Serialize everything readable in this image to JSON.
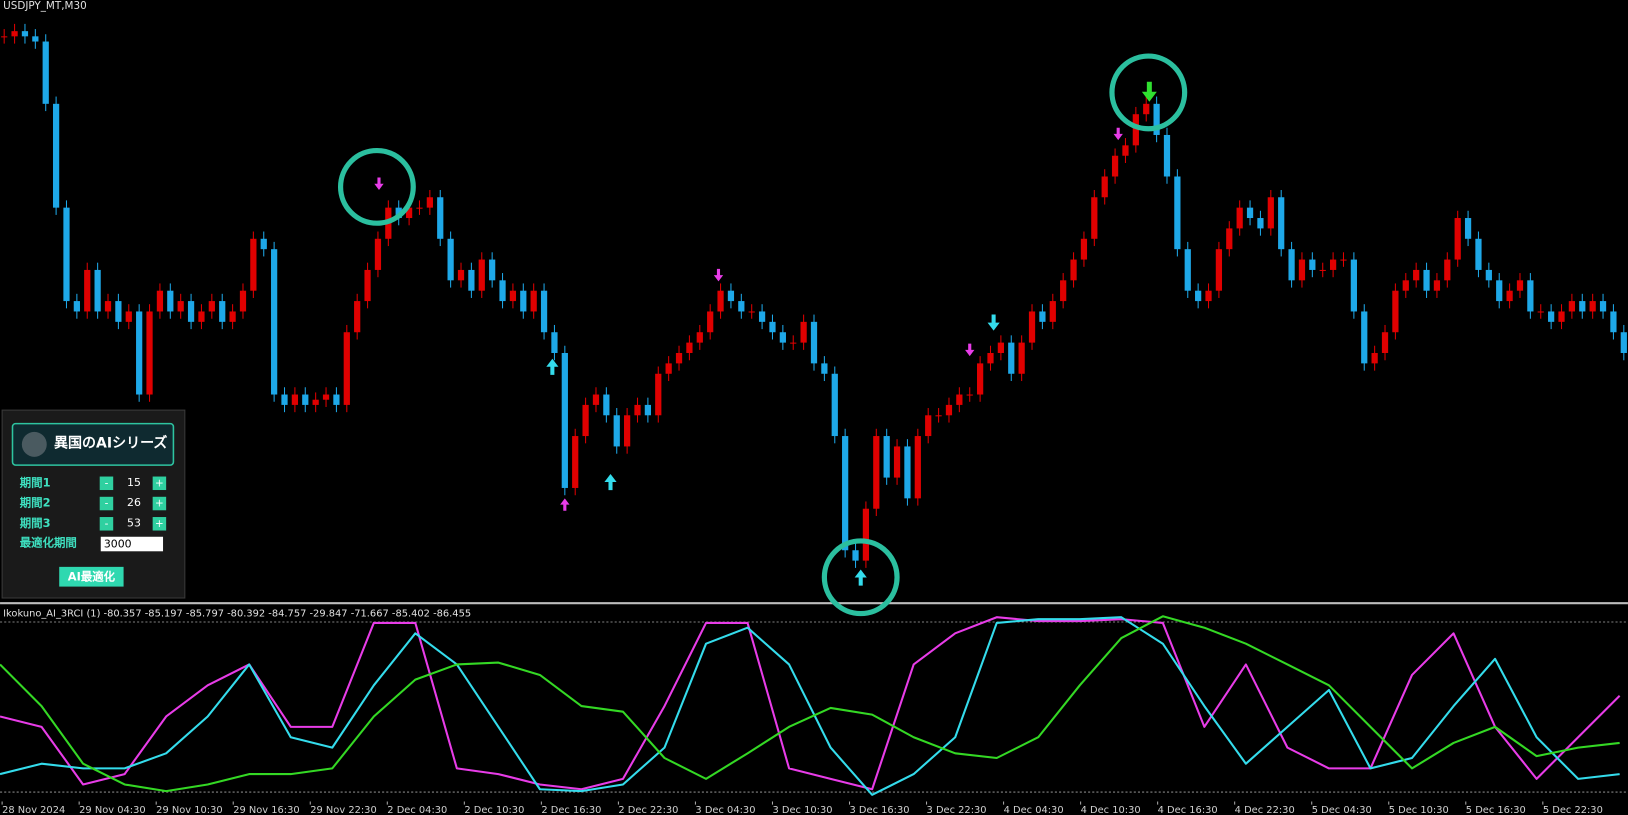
{
  "header": {
    "symbol": "USDJPY_MT,M30"
  },
  "chart_data": [
    {
      "type": "candlestick",
      "up_color": "#e00000",
      "down_color": "#1ea8e8",
      "ylim": [
        0,
        580
      ],
      "values": [
        545,
        550,
        545,
        540,
        480,
        380,
        290,
        280,
        320,
        280,
        290,
        270,
        280,
        200,
        280,
        300,
        280,
        290,
        270,
        280,
        290,
        270,
        280,
        300,
        350,
        340,
        200,
        190,
        200,
        190,
        195,
        200,
        190,
        260,
        290,
        320,
        350,
        380,
        370,
        380,
        380,
        390,
        350,
        310,
        320,
        300,
        330,
        310,
        290,
        300,
        280,
        300,
        260,
        240,
        110,
        160,
        190,
        200,
        180,
        150,
        180,
        190,
        180,
        220,
        230,
        240,
        250,
        260,
        280,
        300,
        290,
        280,
        280,
        270,
        260,
        250,
        250,
        270,
        230,
        220,
        160,
        50,
        40,
        90,
        160,
        120,
        150,
        100,
        160,
        180,
        180,
        190,
        200,
        200,
        230,
        240,
        250,
        220,
        250,
        280,
        270,
        290,
        310,
        330,
        350,
        390,
        410,
        430,
        440,
        470,
        480,
        450,
        410,
        340,
        300,
        290,
        300,
        340,
        360,
        380,
        370,
        360,
        390,
        340,
        310,
        330,
        320,
        320,
        330,
        330,
        280,
        230,
        240,
        260,
        300,
        310,
        320,
        300,
        310,
        330,
        370,
        350,
        320,
        310,
        290,
        300,
        310,
        280,
        280,
        270,
        280,
        290,
        280,
        290,
        280,
        260,
        240
      ]
    },
    {
      "type": "line",
      "title": "Ikokuno_AI_3RCI (1) -80.357 -85.197 -85.797 -80.392 -84.757 -29.847 -71.667 -85.402 -86.455",
      "ylim": [
        -100,
        100
      ],
      "levels": [
        90,
        -90
      ],
      "series": [
        {
          "color": "#e83ce8",
          "values": [
            -10,
            -21,
            -82,
            -71,
            -10,
            23,
            45,
            -21,
            -21,
            89,
            89,
            -65,
            -71,
            -82,
            -87,
            -76,
            1,
            89,
            89,
            -65,
            -76,
            -87,
            45,
            78,
            95,
            91,
            91,
            93,
            89,
            -21,
            45,
            -43,
            -65,
            -65,
            34,
            78,
            -21,
            -76,
            -32,
            12
          ]
        },
        {
          "color": "#34dcec",
          "values": [
            -71,
            -60,
            -65,
            -65,
            -49,
            -10,
            45,
            -32,
            -43,
            23,
            78,
            45,
            -21,
            -87,
            -89,
            -82,
            -43,
            67,
            84,
            45,
            -43,
            -93,
            -71,
            -32,
            89,
            93,
            93,
            95,
            67,
            1,
            -60,
            -21,
            18,
            -65,
            -54,
            1,
            51,
            -32,
            -76,
            -71
          ]
        },
        {
          "color": "#34d824",
          "values": [
            45,
            1,
            -60,
            -82,
            -89,
            -82,
            -71,
            -71,
            -65,
            -10,
            29,
            45,
            47,
            34,
            1,
            -5,
            -54,
            -76,
            -49,
            -21,
            -1,
            -8,
            -32,
            -49,
            -54,
            -32,
            23,
            73,
            96,
            84,
            67,
            45,
            23,
            -21,
            -65,
            -38,
            -21,
            -52,
            -43,
            -38
          ]
        }
      ]
    }
  ],
  "x_axis": {
    "labels": [
      "28 Nov 2024",
      "29 Nov 04:30",
      "29 Nov 10:30",
      "29 Nov 16:30",
      "29 Nov 22:30",
      "2 Dec 04:30",
      "2 Dec 10:30",
      "2 Dec 16:30",
      "2 Dec 22:30",
      "3 Dec 04:30",
      "3 Dec 10:30",
      "3 Dec 16:30",
      "3 Dec 22:30",
      "4 Dec 04:30",
      "4 Dec 10:30",
      "4 Dec 16:30",
      "4 Dec 22:30",
      "5 Dec 04:30",
      "5 Dec 10:30",
      "5 Dec 16:30",
      "5 Dec 22:30"
    ]
  },
  "panel": {
    "title": "異国のAIシリーズ",
    "rows": [
      {
        "label": "期間1",
        "value": "15"
      },
      {
        "label": "期間2",
        "value": "26"
      },
      {
        "label": "期間3",
        "value": "53"
      }
    ],
    "minus": "-",
    "plus": "+",
    "opt_label": "最適化期間",
    "opt_value": "3000",
    "button": "AI最適化"
  }
}
